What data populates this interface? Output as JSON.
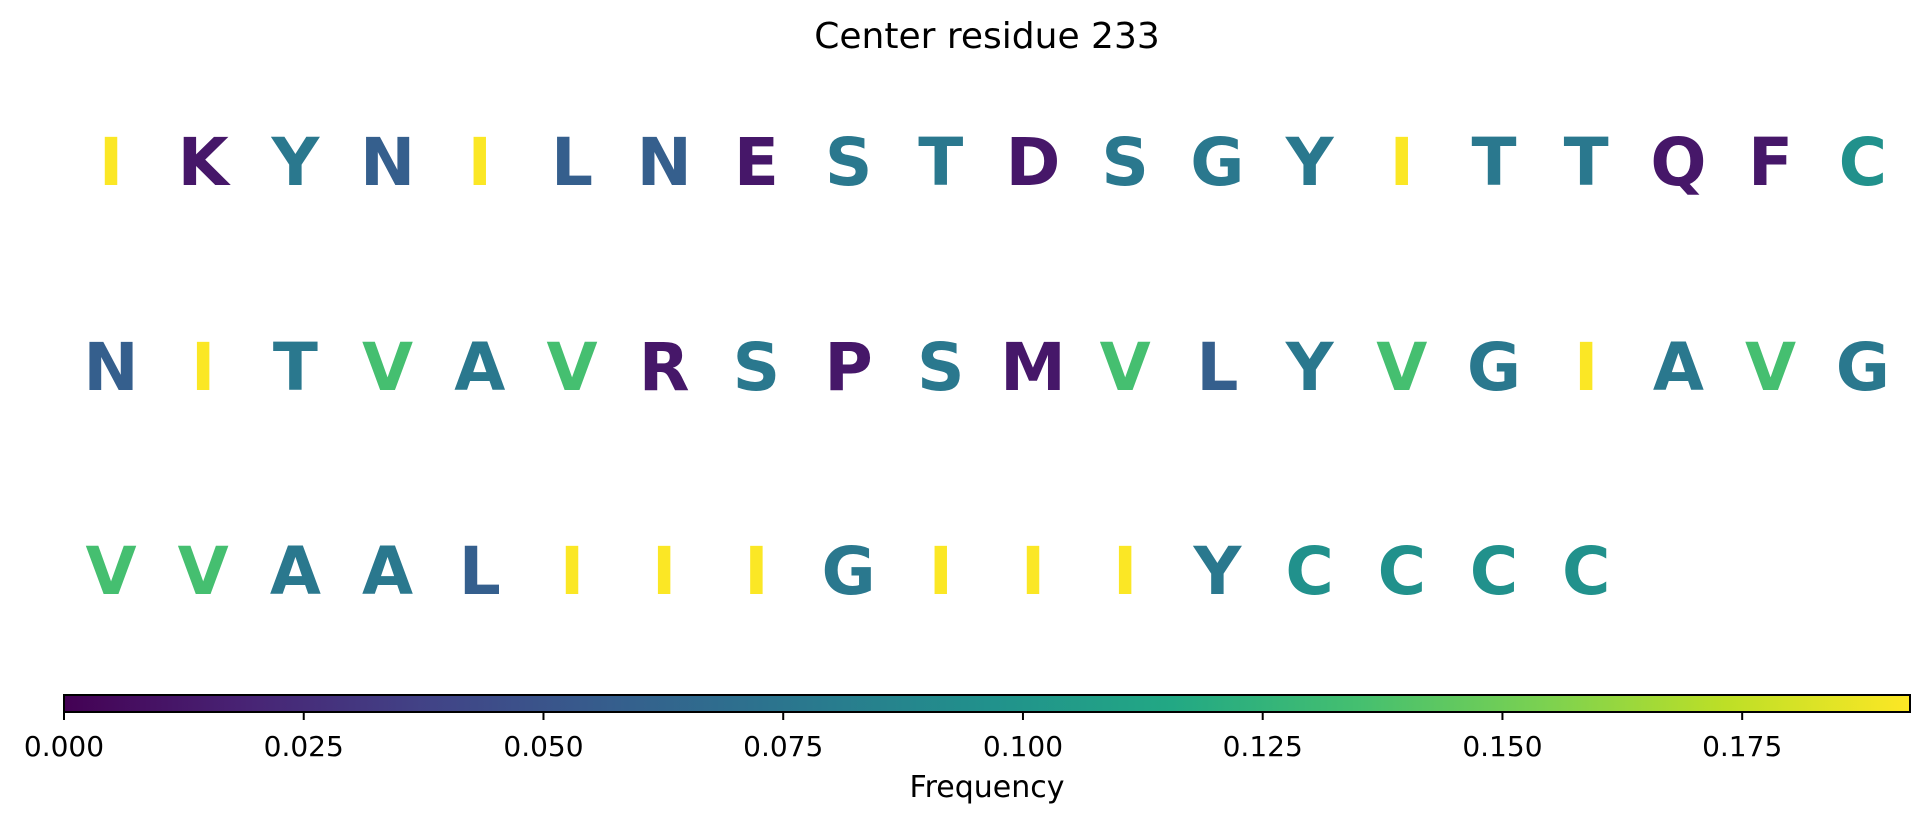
{
  "chart_data": {
    "type": "heatmap",
    "title": "Center residue 233",
    "colorbar": {
      "label": "Frequency",
      "range": [
        0.0,
        0.1925
      ],
      "colormap": "viridis",
      "ticks": [
        0.0,
        0.025,
        0.05,
        0.075,
        0.1,
        0.125,
        0.15,
        0.175
      ],
      "tick_labels": [
        "0.000",
        "0.025",
        "0.050",
        "0.075",
        "0.100",
        "0.125",
        "0.150",
        "0.175"
      ]
    },
    "rows": [
      {
        "residues": [
          "I",
          "K",
          "Y",
          "N",
          "I",
          "L",
          "N",
          "E",
          "S",
          "T",
          "D",
          "S",
          "G",
          "Y",
          "I",
          "T",
          "T",
          "Q",
          "F",
          "C"
        ],
        "frequencies": [
          0.192,
          0.012,
          0.077,
          0.058,
          0.192,
          0.058,
          0.058,
          0.012,
          0.077,
          0.077,
          0.012,
          0.077,
          0.077,
          0.077,
          0.192,
          0.077,
          0.077,
          0.012,
          0.012,
          0.096
        ]
      },
      {
        "residues": [
          "N",
          "I",
          "T",
          "V",
          "A",
          "V",
          "R",
          "S",
          "P",
          "S",
          "M",
          "V",
          "L",
          "Y",
          "V",
          "G",
          "I",
          "A",
          "V",
          "G"
        ],
        "frequencies": [
          0.058,
          0.192,
          0.077,
          0.135,
          0.077,
          0.135,
          0.012,
          0.077,
          0.012,
          0.077,
          0.012,
          0.135,
          0.058,
          0.077,
          0.135,
          0.077,
          0.192,
          0.077,
          0.135,
          0.077
        ]
      },
      {
        "residues": [
          "V",
          "V",
          "A",
          "A",
          "L",
          "I",
          "I",
          "I",
          "G",
          "I",
          "I",
          "I",
          "Y",
          "C",
          "C",
          "C",
          "C"
        ],
        "frequencies": [
          0.135,
          0.135,
          0.077,
          0.077,
          0.058,
          0.192,
          0.192,
          0.192,
          0.077,
          0.192,
          0.192,
          0.192,
          0.077,
          0.096,
          0.096,
          0.096,
          0.096
        ]
      }
    ]
  }
}
